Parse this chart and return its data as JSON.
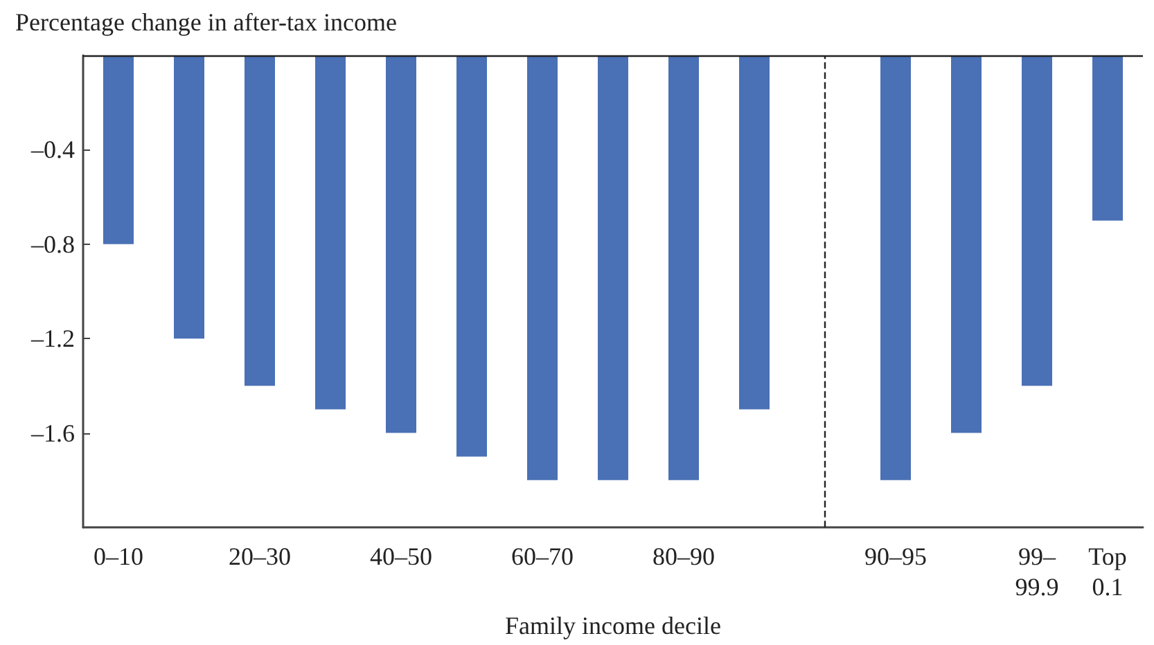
{
  "chart_data": {
    "type": "bar",
    "ylabel": "Percentage change in after-tax income",
    "xlabel": "Family income decile",
    "categories": [
      "0–10",
      null,
      "20–30",
      null,
      "40–50",
      null,
      "60–70",
      null,
      "80–90",
      null,
      null,
      "90–95",
      null,
      "99–\n99.9",
      "Top\n0.1"
    ],
    "values": [
      -0.8,
      -1.2,
      -1.4,
      -1.5,
      -1.6,
      -1.7,
      -1.8,
      -1.8,
      -1.8,
      -1.5,
      null,
      -1.8,
      -1.6,
      -1.4,
      -0.7
    ],
    "color": "#4a70b5",
    "ylim": [
      -2,
      0
    ],
    "yticks": [
      {
        "value": -0.4,
        "label": "–0.4"
      },
      {
        "value": -0.8,
        "label": "–0.8"
      },
      {
        "value": -1.2,
        "label": "–1.2"
      },
      {
        "value": -1.6,
        "label": "–1.6"
      }
    ],
    "ref_lines": [
      {
        "axis": "y",
        "value": 0,
        "line_style": "solid"
      }
    ]
  }
}
